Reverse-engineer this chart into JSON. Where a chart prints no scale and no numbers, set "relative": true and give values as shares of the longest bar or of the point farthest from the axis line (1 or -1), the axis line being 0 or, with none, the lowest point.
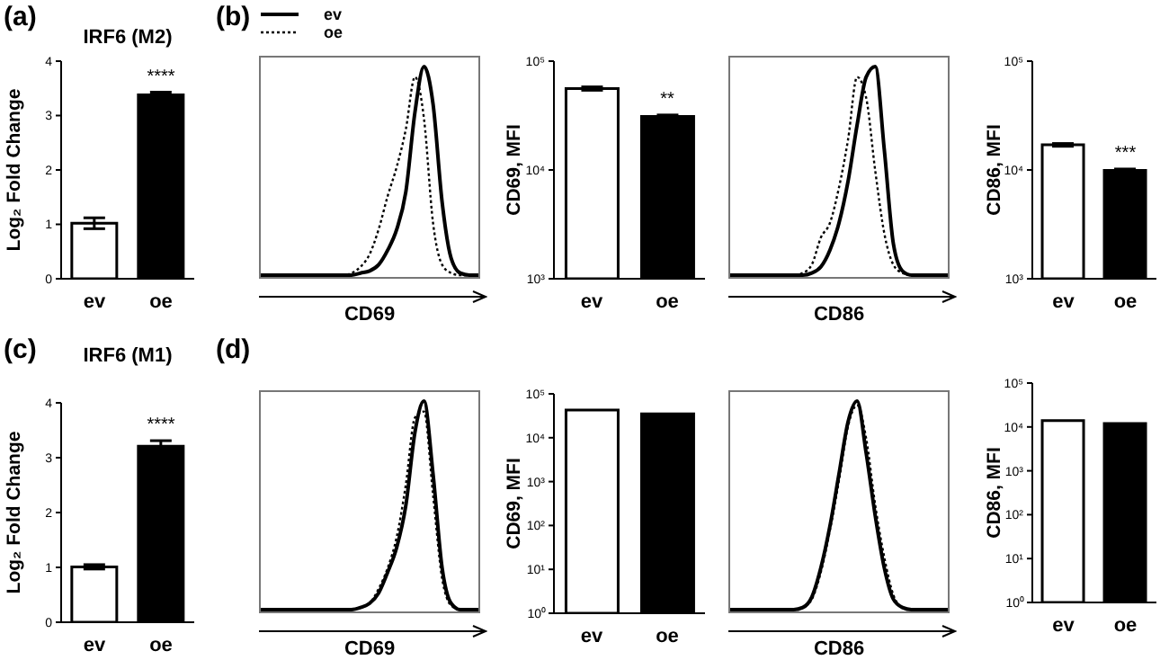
{
  "chart_data": [
    {
      "type": "bar",
      "title": "IRF6 (M2)",
      "ylabel": "Log₂ Fold Change",
      "categories": [
        "ev",
        "oe"
      ],
      "values": [
        1.02,
        3.38
      ],
      "errors": [
        0.1,
        0.05
      ],
      "colors": [
        "#ffffff",
        "#000000"
      ],
      "ylim": [
        0,
        4
      ],
      "yticks": [
        0,
        1,
        2,
        3,
        4
      ],
      "annotations": [
        "(a)",
        {
          "text": "****",
          "x": "oe",
          "y": 3.45
        }
      ]
    },
    {
      "type": "line",
      "relative": true,
      "xlabel": "CD69",
      "tick_labels": false,
      "legend": "top left",
      "annotations": [
        "(b)"
      ],
      "categories": [
        null,
        null,
        null,
        null,
        null,
        null,
        null,
        null,
        null,
        null,
        null,
        null,
        null,
        null,
        null,
        null,
        null,
        null,
        null,
        null,
        null,
        null,
        null,
        null,
        null
      ],
      "series": [
        {
          "name": "ev",
          "color": "#000000",
          "line_style": "solid",
          "values": [
            0,
            0,
            0,
            0,
            0,
            0,
            0,
            0,
            0,
            0,
            0,
            0.01,
            0.02,
            0.05,
            0.12,
            0.22,
            0.4,
            0.78,
            1,
            0.82,
            0.35,
            0.08,
            0.01,
            0,
            0
          ]
        },
        {
          "name": "oe",
          "color": "#000000",
          "line_style": "dotted",
          "values": [
            0,
            0,
            0,
            0,
            0,
            0,
            0,
            0,
            0,
            0,
            0.01,
            0.04,
            0.1,
            0.22,
            0.38,
            0.52,
            0.7,
            0.95,
            0.75,
            0.25,
            0.05,
            0.01,
            0,
            0,
            0
          ]
        }
      ]
    },
    {
      "type": "bar",
      "ylabel": "CD69, MFI",
      "categories": [
        "ev",
        "oe"
      ],
      "values": [
        56000,
        31000
      ],
      "errors": [
        2000,
        1000
      ],
      "colors": [
        "#ffffff",
        "#000000"
      ],
      "log": true,
      "ylim": [
        1000,
        100000
      ],
      "yticks": [
        {
          "value": 1000,
          "label": "10³"
        },
        {
          "value": 10000,
          "label": "10⁴"
        },
        {
          "value": 100000,
          "label": "10⁵"
        }
      ],
      "annotations": [
        {
          "text": "**",
          "x": "oe",
          "y": 33000
        }
      ]
    },
    {
      "type": "line",
      "relative": true,
      "xlabel": "CD86",
      "tick_labels": false,
      "categories": [
        null,
        null,
        null,
        null,
        null,
        null,
        null,
        null,
        null,
        null,
        null,
        null,
        null,
        null,
        null,
        null,
        null,
        null,
        null,
        null,
        null,
        null,
        null,
        null,
        null
      ],
      "series": [
        {
          "color": "#000000",
          "line_style": "solid",
          "values": [
            0,
            0,
            0,
            0,
            0,
            0,
            0,
            0,
            0,
            0.01,
            0.04,
            0.12,
            0.25,
            0.45,
            0.72,
            0.95,
            1,
            0.6,
            0.15,
            0.02,
            0,
            0,
            0,
            0,
            0
          ]
        },
        {
          "color": "#000000",
          "line_style": "dotted",
          "values": [
            0,
            0,
            0,
            0,
            0,
            0,
            0,
            0,
            0.01,
            0.05,
            0.18,
            0.25,
            0.42,
            0.65,
            0.95,
            0.85,
            0.5,
            0.2,
            0.05,
            0.01,
            0,
            0,
            0,
            0,
            0
          ]
        }
      ]
    },
    {
      "type": "bar",
      "ylabel": "CD86, MFI",
      "categories": [
        "ev",
        "oe"
      ],
      "values": [
        17000,
        9900
      ],
      "errors": [
        500,
        300
      ],
      "colors": [
        "#ffffff",
        "#000000"
      ],
      "log": true,
      "ylim": [
        1000,
        100000
      ],
      "yticks": [
        {
          "value": 1000,
          "label": "10³"
        },
        {
          "value": 10000,
          "label": "10⁴"
        },
        {
          "value": 100000,
          "label": "10⁵"
        }
      ],
      "annotations": [
        {
          "text": "***",
          "x": "oe",
          "y": 10500
        }
      ]
    },
    {
      "type": "bar",
      "title": "IRF6 (M1)",
      "ylabel": "Log₂ Fold Change",
      "categories": [
        "ev",
        "oe"
      ],
      "values": [
        1.01,
        3.21
      ],
      "errors": [
        0.04,
        0.1
      ],
      "colors": [
        "#ffffff",
        "#000000"
      ],
      "ylim": [
        0,
        4
      ],
      "yticks": [
        0,
        1,
        2,
        3,
        4
      ],
      "annotations": [
        "(c)",
        {
          "text": "****",
          "x": "oe",
          "y": 3.35
        }
      ]
    },
    {
      "type": "line",
      "relative": true,
      "xlabel": "CD69",
      "tick_labels": false,
      "annotations": [
        "(d)"
      ],
      "categories": [
        null,
        null,
        null,
        null,
        null,
        null,
        null,
        null,
        null,
        null,
        null,
        null,
        null,
        null,
        null,
        null,
        null,
        null,
        null,
        null,
        null,
        null,
        null,
        null,
        null
      ],
      "series": [
        {
          "color": "#000000",
          "line_style": "solid",
          "values": [
            0,
            0,
            0,
            0,
            0,
            0,
            0,
            0,
            0,
            0,
            0,
            0.01,
            0.03,
            0.08,
            0.18,
            0.3,
            0.5,
            0.85,
            1,
            0.65,
            0.2,
            0.03,
            0,
            0,
            0
          ]
        },
        {
          "color": "#000000",
          "line_style": "dotted",
          "values": [
            0,
            0,
            0,
            0,
            0,
            0,
            0,
            0,
            0,
            0,
            0,
            0.01,
            0.03,
            0.1,
            0.2,
            0.35,
            0.6,
            0.92,
            0.95,
            0.55,
            0.15,
            0.02,
            0,
            0,
            0
          ]
        }
      ]
    },
    {
      "type": "bar",
      "ylabel": "CD69, MFI",
      "categories": [
        "ev",
        "oe"
      ],
      "values": [
        43000,
        35000
      ],
      "colors": [
        "#ffffff",
        "#000000"
      ],
      "log": true,
      "ylim": [
        1,
        100000
      ],
      "yticks": [
        {
          "value": 1,
          "label": "10⁰"
        },
        {
          "value": 10,
          "label": "10¹"
        },
        {
          "value": 100,
          "label": "10²"
        },
        {
          "value": 1000,
          "label": "10³"
        },
        {
          "value": 10000,
          "label": "10⁴"
        },
        {
          "value": 100000,
          "label": "10⁵"
        }
      ]
    },
    {
      "type": "line",
      "relative": true,
      "xlabel": "CD86",
      "tick_labels": false,
      "categories": [
        null,
        null,
        null,
        null,
        null,
        null,
        null,
        null,
        null,
        null,
        null,
        null,
        null,
        null,
        null,
        null,
        null,
        null,
        null,
        null,
        null,
        null,
        null,
        null,
        null
      ],
      "series": [
        {
          "color": "#000000",
          "line_style": "solid",
          "values": [
            0,
            0,
            0,
            0,
            0,
            0,
            0,
            0,
            0.01,
            0.06,
            0.2,
            0.4,
            0.65,
            0.9,
            1,
            0.75,
            0.45,
            0.2,
            0.05,
            0.01,
            0,
            0,
            0,
            0,
            0
          ]
        },
        {
          "color": "#000000",
          "line_style": "dotted",
          "values": [
            0,
            0,
            0,
            0,
            0,
            0,
            0,
            0,
            0.01,
            0.05,
            0.18,
            0.38,
            0.62,
            0.88,
            0.98,
            0.82,
            0.5,
            0.25,
            0.07,
            0.01,
            0,
            0,
            0,
            0,
            0
          ]
        }
      ]
    },
    {
      "type": "bar",
      "ylabel": "CD86, MFI",
      "categories": [
        "ev",
        "oe"
      ],
      "values": [
        14000,
        12000
      ],
      "colors": [
        "#ffffff",
        "#000000"
      ],
      "log": true,
      "ylim": [
        1,
        100000
      ],
      "yticks": [
        {
          "value": 1,
          "label": "10⁰"
        },
        {
          "value": 10,
          "label": "10¹"
        },
        {
          "value": 100,
          "label": "10²"
        },
        {
          "value": 1000,
          "label": "10³"
        },
        {
          "value": 10000,
          "label": "10⁴"
        },
        {
          "value": 100000,
          "label": "10⁵"
        }
      ]
    }
  ]
}
